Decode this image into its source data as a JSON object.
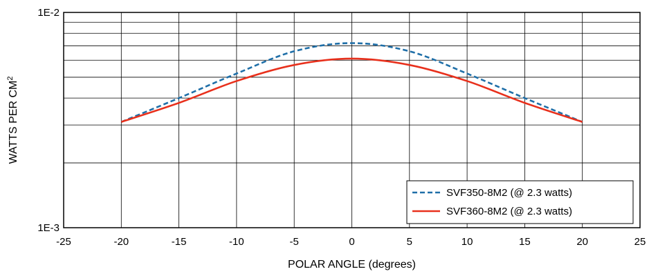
{
  "chart_data": {
    "type": "line",
    "title": "",
    "xlabel": "POLAR ANGLE (degrees)",
    "ylabel": "WATTS PER CM",
    "ylabel_superscript": "2",
    "xlim": [
      -25,
      25
    ],
    "ylim": [
      0.001,
      0.01
    ],
    "yscale": "log",
    "grid": true,
    "x_ticks": [
      -25,
      -20,
      -15,
      -10,
      -5,
      0,
      5,
      10,
      15,
      20,
      25
    ],
    "x_tick_labels": [
      "-25",
      "-20",
      "-15",
      "-10",
      "-5",
      "0",
      "5",
      "10",
      "15",
      "20",
      "25"
    ],
    "y_tick_labels": [
      {
        "value": 0.01,
        "label": "1E-2"
      },
      {
        "value": 0.001,
        "label": "1E-3"
      }
    ],
    "legend_position": "bottom-right",
    "series": [
      {
        "name": "SVF350-8M2 (@ 2.3 watts)",
        "color": "#1f6fa8",
        "style": "dashed",
        "x": [
          -20,
          -15,
          -10,
          -5,
          0,
          5,
          10,
          15,
          20
        ],
        "y": [
          0.0031,
          0.004,
          0.0052,
          0.0066,
          0.0072,
          0.0066,
          0.0052,
          0.004,
          0.0031
        ]
      },
      {
        "name": "SVF360-8M2 (@ 2.3 watts)",
        "color": "#e8301c",
        "style": "solid",
        "x": [
          -20,
          -15,
          -10,
          -5,
          0,
          5,
          10,
          15,
          20
        ],
        "y": [
          0.0031,
          0.0038,
          0.0048,
          0.0057,
          0.0061,
          0.0057,
          0.0048,
          0.0038,
          0.0031
        ]
      }
    ]
  }
}
